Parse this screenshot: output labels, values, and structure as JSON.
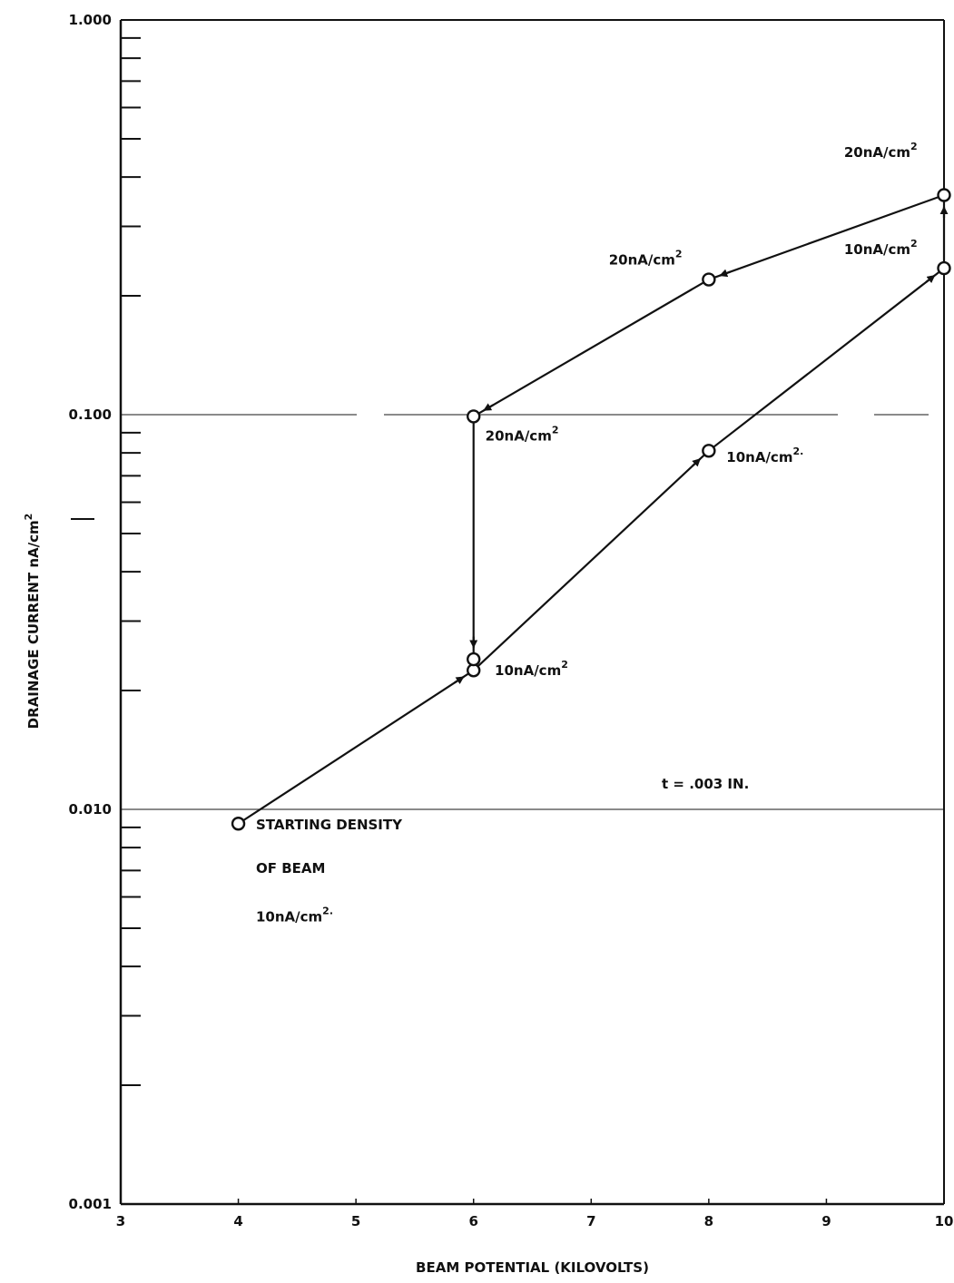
{
  "chart_data": {
    "type": "line",
    "title": "",
    "xlabel": "BEAM POTENTIAL (KILOVOLTS)",
    "ylabel": "DRAINAGE CURRENT nA/cm",
    "ylabel_sup": "2",
    "xlim": [
      3,
      10
    ],
    "ylim": [
      0.001,
      1.0
    ],
    "yscale": "log",
    "grid": "partial horizontal lines at 0.100 and 0.010",
    "x_ticks": [
      "3",
      "4",
      "5",
      "6",
      "7",
      "8",
      "9",
      "10"
    ],
    "y_ticks": [
      "1.000",
      "0.100",
      "0.010",
      "0.001"
    ],
    "points": [
      {
        "x": 4,
        "y": 0.0092
      },
      {
        "x": 6,
        "y": 0.0225
      },
      {
        "x": 8,
        "y": 0.081
      },
      {
        "x": 10,
        "y": 0.235
      },
      {
        "x": 10,
        "y": 0.36
      },
      {
        "x": 8,
        "y": 0.22
      },
      {
        "x": 6,
        "y": 0.099
      },
      {
        "x": 6,
        "y": 0.024
      }
    ],
    "annotations": [
      {
        "text": "STARTING DENSITY",
        "x": 4.15,
        "y": 0.0089
      },
      {
        "text": "OF BEAM",
        "x": 4.15,
        "y": 0.0069
      },
      {
        "text": "10nA/cm",
        "sup": "2.",
        "x": 4.15,
        "y": 0.0052
      },
      {
        "text": "10nA/cm",
        "sup": "2",
        "x": 6.18,
        "y": 0.0219
      },
      {
        "text": "20nA/cm",
        "sup": "2",
        "x": 6.1,
        "y": 0.086
      },
      {
        "text": "10nA/cm",
        "sup": "2.",
        "x": 8.15,
        "y": 0.076
      },
      {
        "text": "20nA/cm",
        "sup": "2",
        "x": 7.15,
        "y": 0.24
      },
      {
        "text": "10nA/cm",
        "sup": "2",
        "x": 9.15,
        "y": 0.255
      },
      {
        "text": "20nA/cm",
        "sup": "2",
        "x": 9.15,
        "y": 0.45
      },
      {
        "text": "t = .003 IN.",
        "x": 7.6,
        "y": 0.0113
      }
    ]
  }
}
